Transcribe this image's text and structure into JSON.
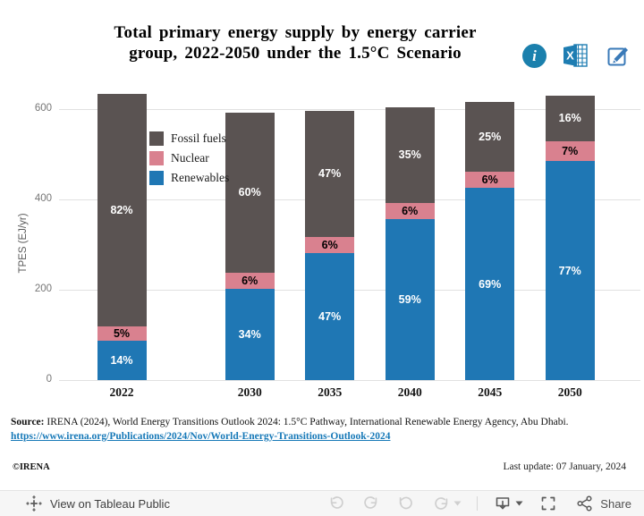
{
  "title": {
    "line1": "Total primary energy supply by energy carrier",
    "line2": "group, 2022-2050 under the 1.5°C Scenario"
  },
  "header_icons": [
    {
      "name": "info-icon",
      "glyph": "i"
    },
    {
      "name": "excel-export-icon",
      "glyph": "X"
    },
    {
      "name": "edit-icon",
      "glyph": "pencil-square"
    }
  ],
  "chart_data": {
    "type": "bar",
    "stacked": true,
    "title": "Total primary energy supply by energy carrier group, 2022-2050 under the 1.5°C Scenario",
    "ylabel": "TPES (EJ/yr)",
    "yticks": [
      0,
      200,
      400,
      600
    ],
    "ylim": [
      0,
      640
    ],
    "grid": true,
    "legend_position": "inside-upper-left",
    "categories": [
      "2022",
      "2030",
      "2035",
      "2040",
      "2045",
      "2050"
    ],
    "totals_EJ": [
      633,
      593,
      597,
      604,
      616,
      630
    ],
    "series": [
      {
        "name": "Fossil fuels",
        "color": "#5a5352",
        "label_color": "#ffffff",
        "pct": [
          82,
          60,
          47,
          35,
          25,
          16
        ]
      },
      {
        "name": "Nuclear",
        "color": "#d9818f",
        "label_color": "#000000",
        "pct": [
          5,
          6,
          6,
          6,
          6,
          7
        ]
      },
      {
        "name": "Renewables",
        "color": "#1f77b4",
        "label_color": "#ffffff",
        "pct": [
          14,
          34,
          47,
          59,
          69,
          77
        ]
      }
    ],
    "value_label_format": "percent"
  },
  "source": {
    "label": "Source:",
    "text": " IRENA (2024), World Energy Transitions Outlook 2024: 1.5°C Pathway, International Renewable Energy Agency, Abu Dhabi.",
    "link": "https://www.irena.org/Publications/2024/Nov/World-Energy-Transitions-Outlook-2024"
  },
  "footer": {
    "copyright": "©IRENA",
    "last_update": "Last update: 07 January, 2024"
  },
  "toolbar": {
    "view_on_tableau": "View on Tableau Public",
    "share": "Share",
    "icons": [
      "tableau-logo-icon",
      "undo-icon",
      "redo-icon",
      "revert-icon",
      "refresh-icon",
      "download-icon",
      "fullscreen-icon",
      "share-icon"
    ],
    "disabled_color": "#cfcfcf",
    "enabled_color": "#5a5a5a"
  },
  "colors": {
    "icon_blue": "#1e7db2",
    "link_blue": "#1779b8",
    "gridline": "#e1e1e1"
  }
}
